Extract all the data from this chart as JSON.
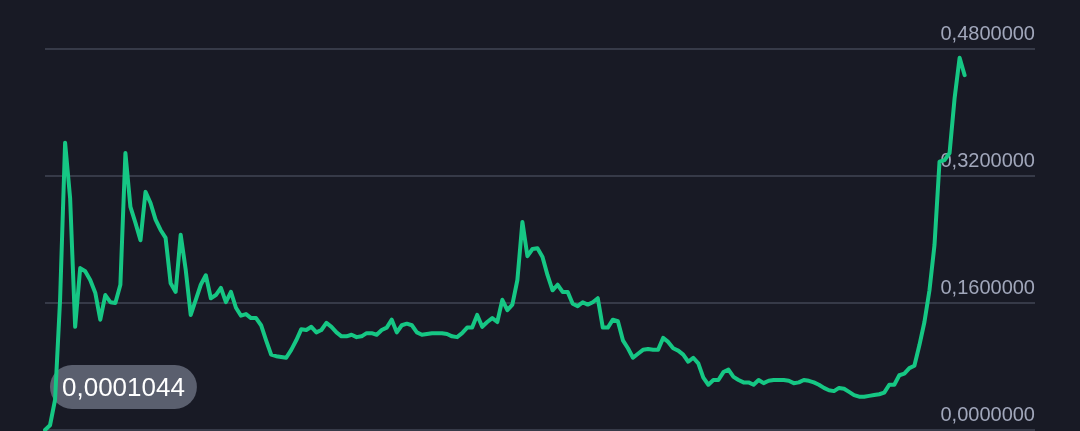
{
  "chart_data": {
    "type": "line",
    "categories": [
      null,
      null,
      null,
      null,
      null,
      null,
      null,
      null,
      null,
      null,
      null,
      null,
      null,
      null,
      null,
      null,
      null,
      null,
      null,
      null,
      null,
      null,
      null,
      null,
      null,
      null,
      null,
      null,
      null,
      null,
      null,
      null,
      null,
      null,
      null,
      null,
      null,
      null,
      null,
      null,
      null,
      null,
      null,
      null,
      null,
      null,
      null,
      null,
      null,
      null,
      null,
      null,
      null,
      null,
      null,
      null,
      null,
      null,
      null,
      null,
      null,
      null,
      null,
      null,
      null,
      null,
      null,
      null,
      null,
      null,
      null,
      null,
      null,
      null,
      null,
      null,
      null,
      null,
      null,
      null,
      null,
      null,
      null,
      null,
      null,
      null,
      null,
      null,
      null,
      null,
      null,
      null,
      null,
      null,
      null,
      null,
      null,
      null,
      null,
      null,
      null,
      null,
      null,
      null,
      null,
      null,
      null,
      null,
      null,
      null,
      null,
      null,
      null,
      null,
      null,
      null,
      null,
      null,
      null,
      null,
      null,
      null,
      null,
      null,
      null,
      null,
      null,
      null,
      null,
      null,
      null,
      null,
      null,
      null,
      null,
      null,
      null,
      null,
      null,
      null,
      null,
      null,
      null,
      null,
      null,
      null,
      null,
      null,
      null,
      null,
      null,
      null,
      null,
      null,
      null,
      null,
      null,
      null,
      null,
      null,
      null,
      null,
      null,
      null,
      null,
      null,
      null,
      null,
      null,
      null,
      null,
      null,
      null,
      null,
      null,
      null,
      null,
      null,
      null,
      null,
      null,
      null,
      null,
      null,
      null,
      null,
      null,
      null,
      null,
      null,
      null,
      null,
      null,
      null,
      null,
      null,
      null,
      null
    ],
    "series": [
      {
        "color": "#16c784",
        "values": [
          0.0,
          0.006,
          0.038,
          0.164,
          0.362,
          0.292,
          0.13,
          0.204,
          0.2,
          0.189,
          0.173,
          0.139,
          0.17,
          0.161,
          0.16,
          0.183,
          0.349,
          0.281,
          0.261,
          0.239,
          0.3,
          0.286,
          0.265,
          0.252,
          0.242,
          0.185,
          0.174,
          0.246,
          0.202,
          0.145,
          0.164,
          0.183,
          0.195,
          0.166,
          0.17,
          0.179,
          0.161,
          0.174,
          0.154,
          0.144,
          0.146,
          0.141,
          0.141,
          0.132,
          0.113,
          0.095,
          0.093,
          0.092,
          0.091,
          0.101,
          0.113,
          0.127,
          0.126,
          0.13,
          0.123,
          0.126,
          0.135,
          0.13,
          0.123,
          0.118,
          0.118,
          0.12,
          0.117,
          0.118,
          0.122,
          0.122,
          0.12,
          0.126,
          0.129,
          0.139,
          0.123,
          0.132,
          0.134,
          0.132,
          0.123,
          0.12,
          0.121,
          0.122,
          0.122,
          0.122,
          0.121,
          0.118,
          0.117,
          0.122,
          0.129,
          0.129,
          0.145,
          0.13,
          0.136,
          0.141,
          0.136,
          0.164,
          0.151,
          0.158,
          0.189,
          0.262,
          0.219,
          0.228,
          0.229,
          0.218,
          0.195,
          0.176,
          0.183,
          0.174,
          0.174,
          0.159,
          0.156,
          0.161,
          0.158,
          0.161,
          0.166,
          0.129,
          0.129,
          0.139,
          0.137,
          0.113,
          0.103,
          0.091,
          0.096,
          0.101,
          0.102,
          0.101,
          0.101,
          0.116,
          0.111,
          0.103,
          0.1,
          0.095,
          0.086,
          0.091,
          0.084,
          0.066,
          0.057,
          0.063,
          0.063,
          0.073,
          0.076,
          0.067,
          0.063,
          0.06,
          0.06,
          0.057,
          0.063,
          0.059,
          0.062,
          0.063,
          0.063,
          0.063,
          0.062,
          0.059,
          0.06,
          0.063,
          0.062,
          0.06,
          0.057,
          0.053,
          0.05,
          0.049,
          0.053,
          0.052,
          0.048,
          0.044,
          0.042,
          0.042,
          0.043,
          0.044,
          0.045,
          0.047,
          0.057,
          0.057,
          0.069,
          0.071,
          0.078,
          0.081,
          0.107,
          0.136,
          0.176,
          0.233,
          0.338,
          0.34,
          0.349,
          0.418,
          0.469,
          0.447,
          null,
          null,
          null,
          null,
          null,
          null,
          null,
          null,
          null,
          null,
          null,
          null,
          null,
          null
        ]
      }
    ],
    "ylim": [
      0,
      0.48
    ],
    "yticks": [
      {
        "value": 0,
        "label": "0,0000000"
      },
      {
        "value": 0.16,
        "label": "0,1600000"
      },
      {
        "value": 0.32,
        "label": "0,3200000"
      },
      {
        "value": 0.48,
        "label": "0,4800000"
      }
    ],
    "grid": "y",
    "tick_labels": "y",
    "line_style": "solid",
    "annotations": [
      "0,0001044"
    ]
  }
}
